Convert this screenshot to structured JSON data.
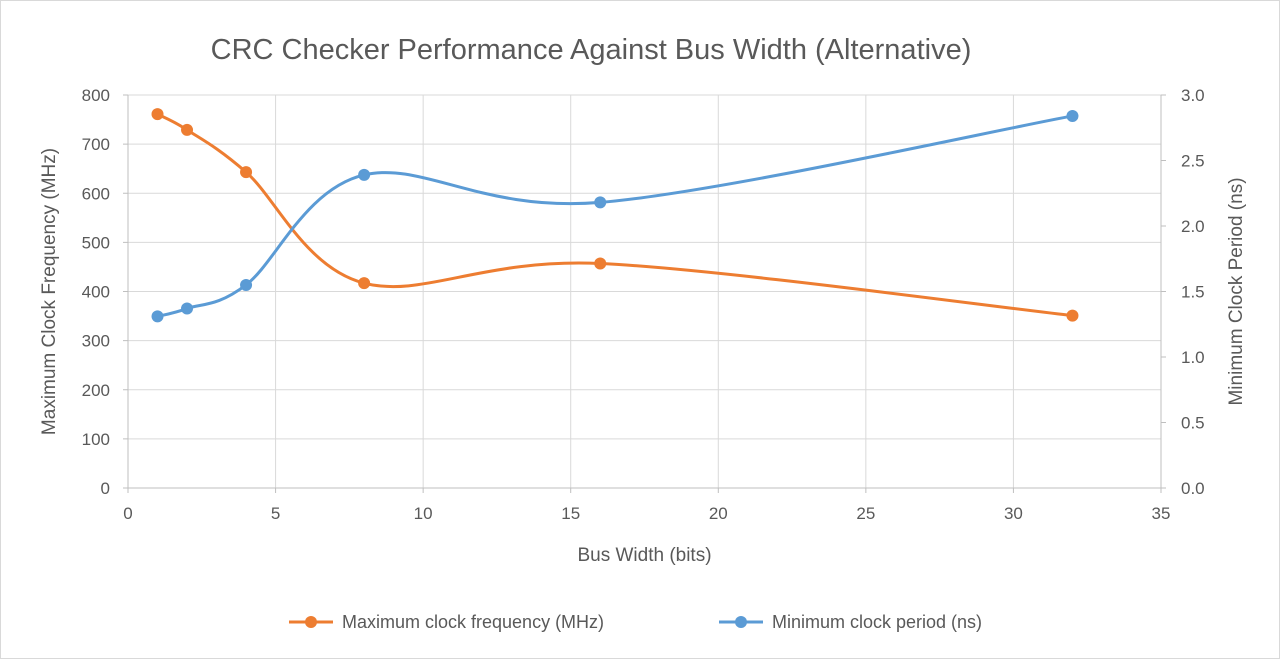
{
  "chart_data": {
    "type": "line",
    "title": "CRC Checker Performance Against Bus Width (Alternative)",
    "xlabel": "Bus Width (bits)",
    "ylabel": "Maximum Clock Frequency (MHz)",
    "y2label": "Minimum Clock Period (ns)",
    "xlim": [
      0,
      35
    ],
    "ylim": [
      0,
      800
    ],
    "y2lim": [
      0,
      3.0
    ],
    "xticks": [
      "0",
      "5",
      "10",
      "15",
      "20",
      "25",
      "30",
      "35"
    ],
    "yticks": [
      "0",
      "100",
      "200",
      "300",
      "400",
      "500",
      "600",
      "700",
      "800"
    ],
    "y2ticks": [
      "0.0",
      "0.5",
      "1.0",
      "1.5",
      "2.0",
      "2.5",
      "3.0"
    ],
    "grid": true,
    "legend_position": "bottom",
    "series": [
      {
        "name": "Maximum clock frequency (MHz)",
        "axis": "left",
        "color": "#ed7d31",
        "smooth": true,
        "x": [
          1,
          2,
          4,
          8,
          16,
          32
        ],
        "values": [
          761,
          729,
          643,
          417,
          457,
          351
        ]
      },
      {
        "name": "Minimum clock period (ns)",
        "axis": "right",
        "color": "#5b9bd5",
        "smooth": true,
        "x": [
          1,
          2,
          4,
          8,
          16,
          32
        ],
        "values": [
          1.31,
          1.37,
          1.55,
          2.39,
          2.18,
          2.84
        ]
      }
    ]
  }
}
